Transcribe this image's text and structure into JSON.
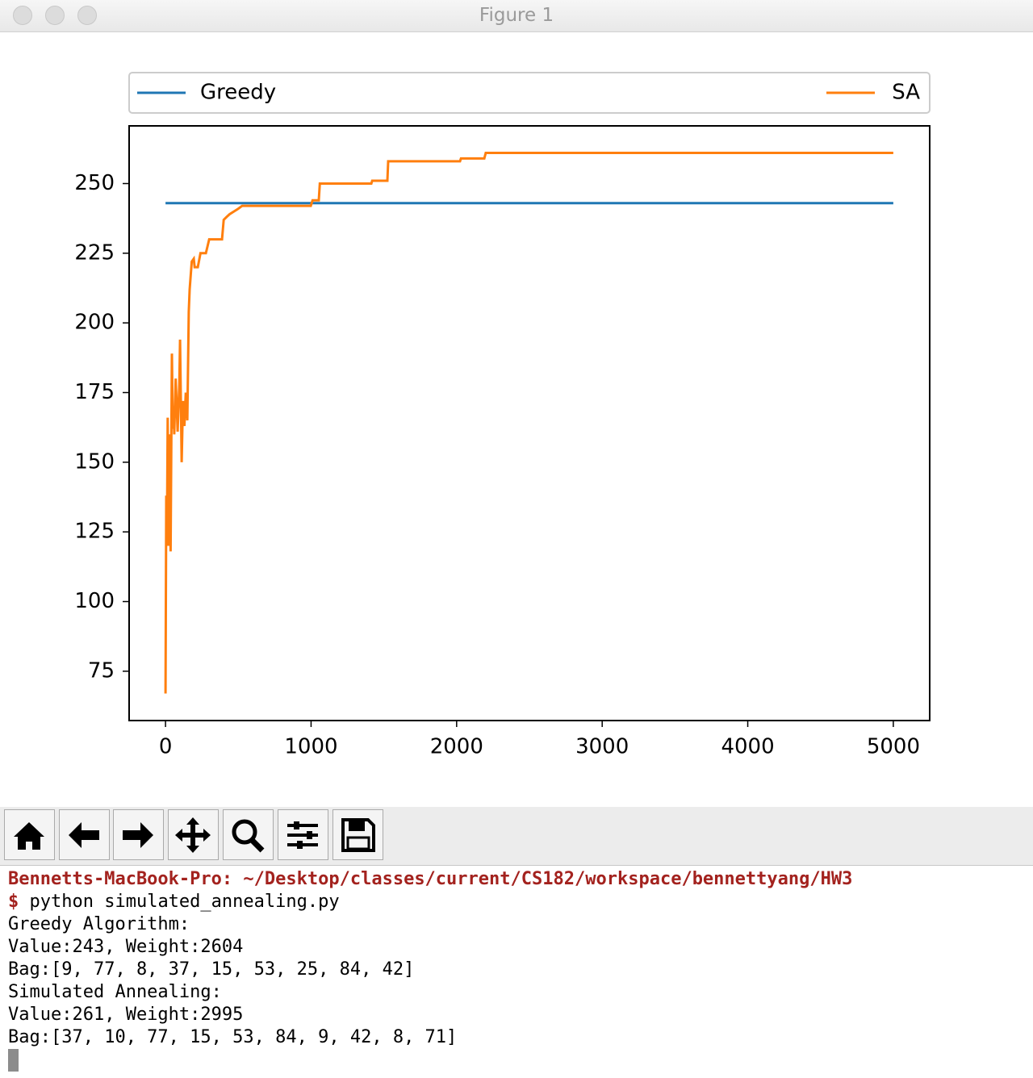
{
  "window": {
    "title": "Figure 1"
  },
  "chart_data": {
    "type": "line",
    "series": [
      {
        "name": "Greedy",
        "color": "#1f77b4",
        "x": [
          0,
          5000
        ],
        "values": [
          243,
          243
        ]
      },
      {
        "name": "SA",
        "color": "#ff7f0e",
        "x": [
          0,
          5,
          10,
          15,
          20,
          28,
          35,
          44,
          50,
          55,
          60,
          70,
          83,
          95,
          100,
          111,
          120,
          130,
          139,
          150,
          160,
          166,
          180,
          194,
          200,
          222,
          240,
          277,
          300,
          388,
          400,
          420,
          440,
          471,
          500,
          527,
          998,
          1010,
          1053,
          1060,
          1414,
          1420,
          1524,
          1530,
          2023,
          2030,
          2190,
          2200,
          5000
        ],
        "values": [
          67,
          138,
          125,
          166,
          120,
          160,
          118,
          189,
          162,
          170,
          160,
          180,
          161,
          178,
          194,
          150,
          172,
          163,
          175,
          165,
          204,
          212,
          222,
          223,
          220,
          220,
          225,
          225,
          230,
          230,
          237,
          238,
          239,
          240,
          241,
          242,
          242,
          244,
          244,
          250,
          250,
          251,
          251,
          258,
          258,
          259,
          259,
          261,
          261
        ]
      }
    ],
    "xlim": [
      -250,
      5250
    ],
    "xticks": [
      0,
      1000,
      2000,
      3000,
      4000,
      5000
    ],
    "ylim": [
      57.3,
      270.7
    ],
    "yticks": [
      75,
      100,
      125,
      150,
      175,
      200,
      225,
      250
    ],
    "grid": false,
    "legend": "top"
  },
  "terminal": {
    "prompt": "Bennetts-MacBook-Pro: ~/Desktop/classes/current/CS182/workspace/bennettyang/HW3",
    "symbol": "$",
    "command": "python simulated_annealing.py",
    "output": [
      "Greedy Algorithm:",
      "Value:243, Weight:2604",
      "Bag:[9, 77, 8, 37, 15, 53, 25, 84, 42]",
      "Simulated Annealing:",
      "Value:261, Weight:2995",
      "Bag:[37, 10, 77, 15, 53, 84, 9, 42, 8, 71]"
    ]
  }
}
